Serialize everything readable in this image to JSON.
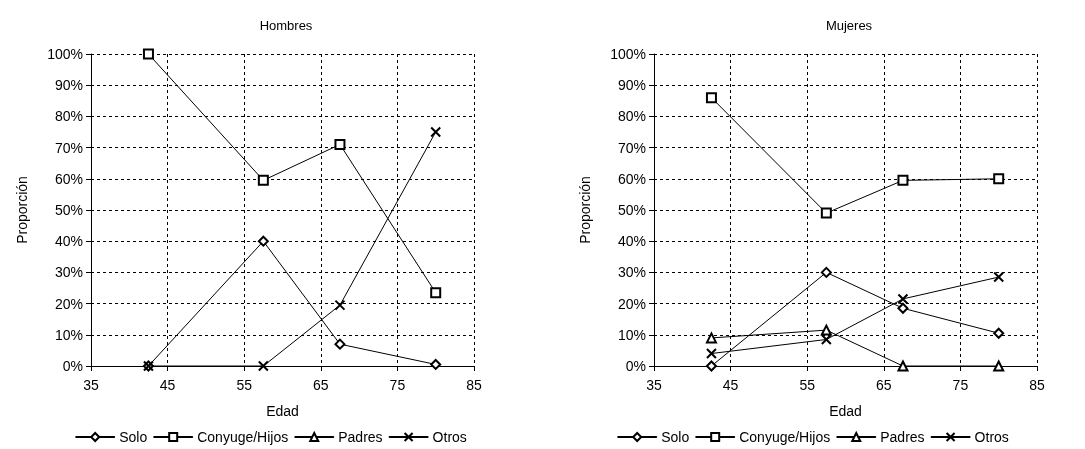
{
  "chart_data": [
    {
      "type": "line",
      "title": "Hombres",
      "xlabel": "Edad",
      "ylabel": "Proporción",
      "x": [
        42.5,
        57.5,
        67.5,
        80
      ],
      "xlim": [
        35,
        85
      ],
      "xticks": [
        35,
        45,
        55,
        65,
        75,
        85
      ],
      "ylim": [
        0,
        100
      ],
      "yticks": [
        {
          "value": 0,
          "label": "0%"
        },
        {
          "value": 10,
          "label": "10%"
        },
        {
          "value": 20,
          "label": "20%"
        },
        {
          "value": 30,
          "label": "30%"
        },
        {
          "value": 40,
          "label": "40%"
        },
        {
          "value": 50,
          "label": "50%"
        },
        {
          "value": 60,
          "label": "60%"
        },
        {
          "value": 70,
          "label": "70%"
        },
        {
          "value": 80,
          "label": "80%"
        },
        {
          "value": 90,
          "label": "90%"
        },
        {
          "value": 100,
          "label": "100%"
        }
      ],
      "grid": true,
      "legend": "bottom",
      "line_style": "solid",
      "series": [
        {
          "name": "Solo",
          "color": "#000000",
          "marker": "diamond",
          "values": [
            0,
            40,
            7,
            0.5
          ]
        },
        {
          "name": "Conyuge/Hijos",
          "color": "#000000",
          "marker": "square",
          "values": [
            100,
            59.5,
            71,
            23.5
          ]
        },
        {
          "name": "Padres",
          "color": "#000000",
          "marker": "triangle",
          "values": [
            null,
            null,
            null,
            null
          ]
        },
        {
          "name": "Otros",
          "color": "#000000",
          "marker": "cross",
          "values": [
            0,
            0,
            19.5,
            75
          ]
        }
      ]
    },
    {
      "type": "line",
      "title": "Mujeres",
      "xlabel": "Edad",
      "ylabel": "Proporción",
      "x": [
        42.5,
        57.5,
        67.5,
        80
      ],
      "xlim": [
        35,
        85
      ],
      "xticks": [
        35,
        45,
        55,
        65,
        75,
        85
      ],
      "ylim": [
        0,
        100
      ],
      "yticks": [
        {
          "value": 0,
          "label": "0%"
        },
        {
          "value": 10,
          "label": "10%"
        },
        {
          "value": 20,
          "label": "20%"
        },
        {
          "value": 30,
          "label": "30%"
        },
        {
          "value": 40,
          "label": "40%"
        },
        {
          "value": 50,
          "label": "50%"
        },
        {
          "value": 60,
          "label": "60%"
        },
        {
          "value": 70,
          "label": "70%"
        },
        {
          "value": 80,
          "label": "80%"
        },
        {
          "value": 90,
          "label": "90%"
        },
        {
          "value": 100,
          "label": "100%"
        }
      ],
      "grid": true,
      "legend": "bottom",
      "line_style": "solid",
      "series": [
        {
          "name": "Solo",
          "color": "#000000",
          "marker": "diamond",
          "values": [
            0,
            30,
            18.5,
            10.5
          ]
        },
        {
          "name": "Conyuge/Hijos",
          "color": "#000000",
          "marker": "square",
          "values": [
            86,
            49,
            59.5,
            60
          ]
        },
        {
          "name": "Padres",
          "color": "#000000",
          "marker": "triangle",
          "values": [
            9,
            11.5,
            0,
            0
          ]
        },
        {
          "name": "Otros",
          "color": "#000000",
          "marker": "cross",
          "values": [
            4,
            8.5,
            21.5,
            28.5
          ]
        }
      ]
    }
  ]
}
